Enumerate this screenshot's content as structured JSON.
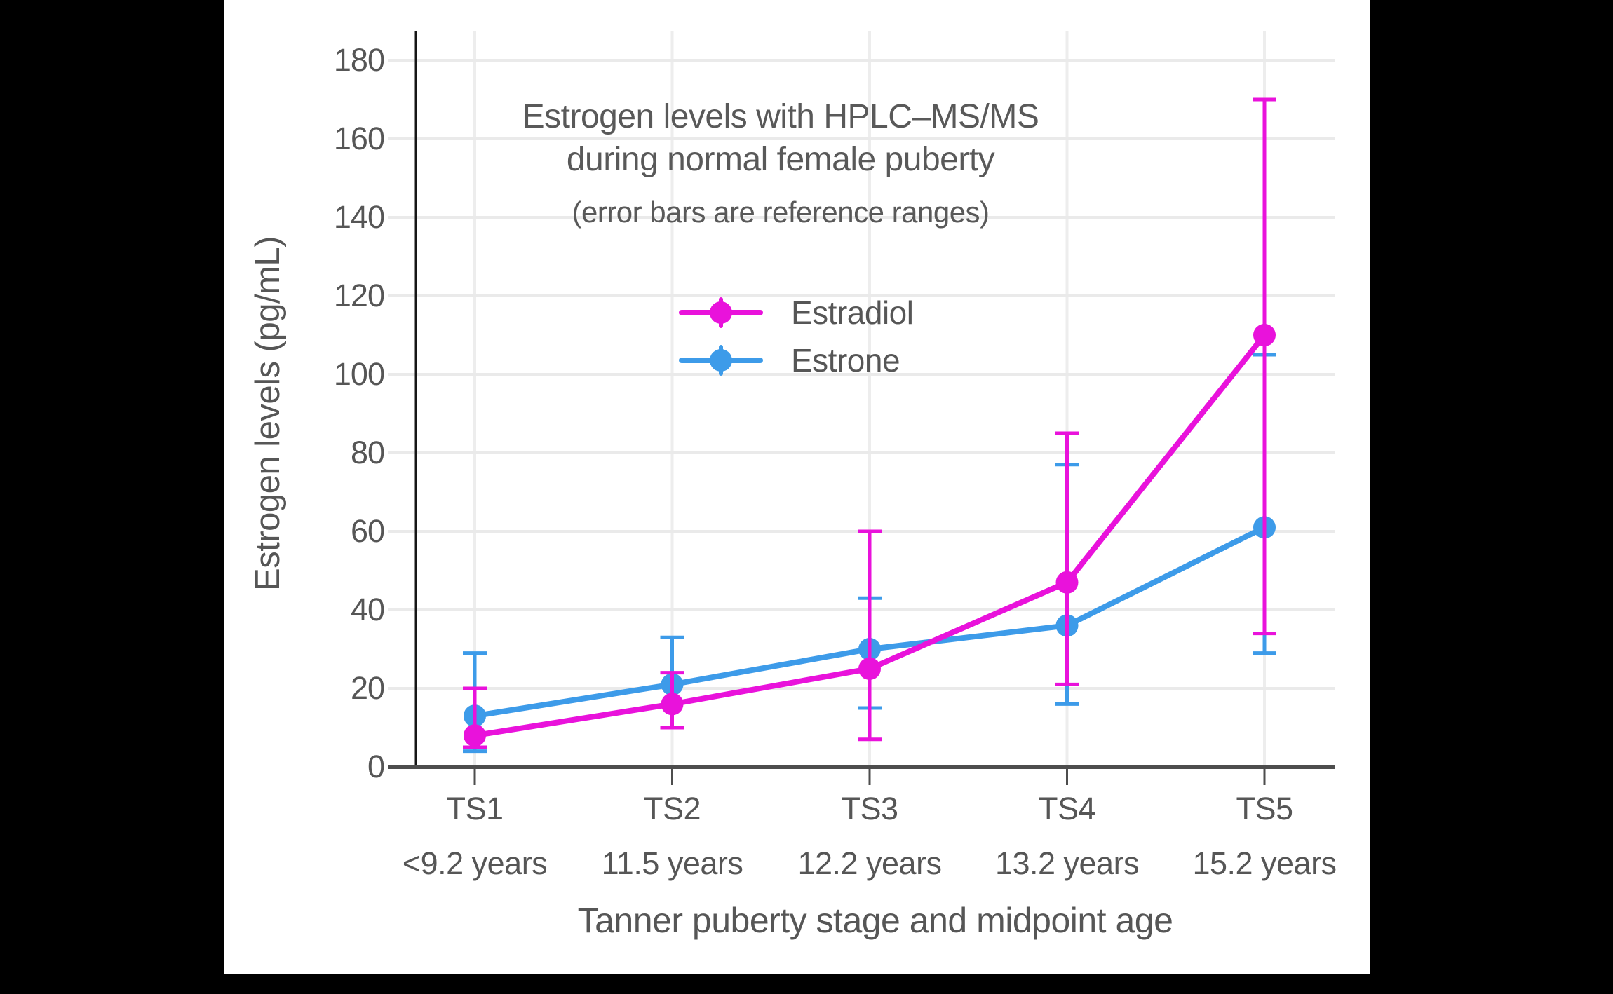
{
  "page": {
    "background_color": "#000000",
    "canvas_color": "#ffffff"
  },
  "chart_data": {
    "type": "line",
    "title_line1": "Estrogen levels with HPLC–MS/MS",
    "title_line2": "during normal female puberty",
    "subtitle": "(error bars are reference ranges)",
    "xlabel": "Tanner puberty stage and midpoint age",
    "ylabel": "Estrogen levels (pg/mL)",
    "categories": [
      "TS1",
      "TS2",
      "TS3",
      "TS4",
      "TS5"
    ],
    "category_sublabels": [
      "<9.2 years",
      "11.5 years",
      "12.2 years",
      "13.2 years",
      "15.2 years"
    ],
    "yticks": [
      0,
      20,
      40,
      60,
      80,
      100,
      120,
      140,
      160,
      180
    ],
    "ylim": [
      0,
      180
    ],
    "grid": "on",
    "legend_position": "upper-center",
    "error_bar_meaning": "reference ranges",
    "series": [
      {
        "name": "Estradiol",
        "color": "#E912DB",
        "values": [
          8,
          16,
          25,
          47,
          110
        ],
        "error_low": [
          5,
          10,
          7,
          21,
          34
        ],
        "error_high": [
          20,
          24,
          60,
          85,
          170
        ]
      },
      {
        "name": "Estrone",
        "color": "#3D9BE9",
        "values": [
          13,
          21,
          30,
          36,
          61
        ],
        "error_low": [
          4,
          10,
          15,
          16,
          29
        ],
        "error_high": [
          29,
          33,
          43,
          77,
          105
        ]
      }
    ],
    "colors": {
      "axis": "#4d4d4d",
      "y_axis_line": "#161616",
      "grid_horizontal": "#eaeaea",
      "grid_vertical": "#ededed",
      "text": "#595959"
    }
  }
}
